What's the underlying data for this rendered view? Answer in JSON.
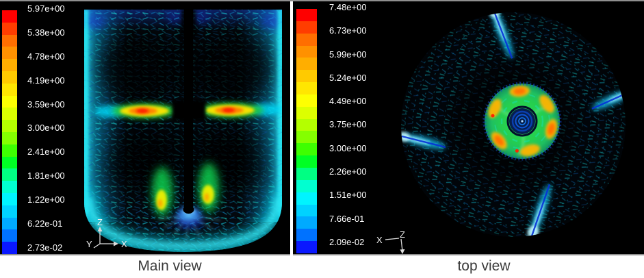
{
  "panels": {
    "main": {
      "caption": "Main view",
      "legend_labels": [
        "5.97e+00",
        "5.38e+00",
        "4.78e+00",
        "4.19e+00",
        "3.59e+00",
        "3.00e+00",
        "2.41e+00",
        "1.81e+00",
        "1.22e+00",
        "6.22e-01",
        "2.73e-02"
      ],
      "axis": {
        "z": "Z",
        "x": "X",
        "y": "Y"
      }
    },
    "top": {
      "caption": "top view",
      "legend_labels": [
        "7.48e+00",
        "6.73e+00",
        "5.99e+00",
        "5.24e+00",
        "4.49e+00",
        "3.75e+00",
        "3.00e+00",
        "2.26e+00",
        "1.51e+00",
        "7.66e-01",
        "2.09e-02"
      ],
      "axis": {
        "x": "X",
        "z": "Z"
      }
    }
  },
  "colorbar": {
    "colors": [
      "#fe0000",
      "#ff3d00",
      "#ff6e00",
      "#ff9100",
      "#ffae00",
      "#ffca00",
      "#ffe601",
      "#fdff02",
      "#dcff00",
      "#b4ff00",
      "#84ff00",
      "#3eff01",
      "#00ff24",
      "#00ff83",
      "#01ffd0",
      "#00f4ff",
      "#00d2ff",
      "#00aaff",
      "#0072ff",
      "#0a18ff"
    ]
  },
  "style": {
    "panel_background": "#000000",
    "label_color": "#ffffff",
    "caption_color": "#3a3a3a",
    "vector_cyan": "#16dff0",
    "baffle_line_blue": "#0531d6"
  },
  "chart_data": [
    {
      "type": "vector-field",
      "title": "Main view",
      "description": "Velocity vector plot, vertical mid-plane of stirred tank; rainbow colormap, discrete 20-band legend",
      "legend_ticks": [
        5.97,
        5.38,
        4.78,
        4.19,
        3.59,
        3.0,
        2.41,
        1.81,
        1.22,
        0.622,
        0.0273
      ],
      "legend_format": "scientific",
      "range": [
        0.0273,
        5.97
      ],
      "colormap": "rainbow",
      "legend_position": "left",
      "axis_triad": [
        "Z up",
        "X right",
        "Y diagonal"
      ]
    },
    {
      "type": "vector-field",
      "title": "top view",
      "description": "Velocity vector plot, horizontal plane (top view) of stirred tank with 4 baffles and central impeller swirl; rainbow colormap, discrete 20-band legend",
      "legend_ticks": [
        7.48,
        6.73,
        5.99,
        5.24,
        4.49,
        3.75,
        3.0,
        2.26,
        1.51,
        0.766,
        0.0209
      ],
      "legend_format": "scientific",
      "range": [
        0.0209,
        7.48
      ],
      "colormap": "rainbow",
      "legend_position": "left",
      "axis_triad": [
        "X left",
        "Z down"
      ]
    }
  ]
}
